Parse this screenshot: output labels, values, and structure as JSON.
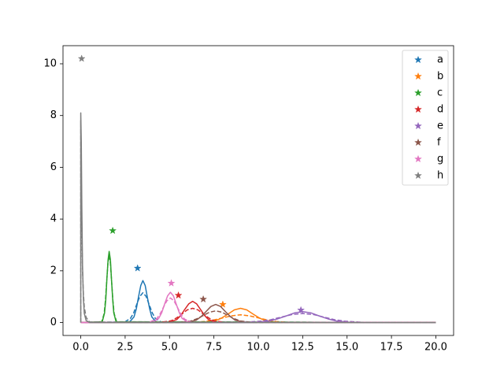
{
  "chart_data": {
    "type": "line",
    "xlim": [
      -1,
      21
    ],
    "ylim": [
      -0.5,
      10.7
    ],
    "xticks": [
      {
        "value": 0,
        "label": "0.0"
      },
      {
        "value": 2.5,
        "label": "2.5"
      },
      {
        "value": 5,
        "label": "5.0"
      },
      {
        "value": 7.5,
        "label": "7.5"
      },
      {
        "value": 10,
        "label": "10.0"
      },
      {
        "value": 12.5,
        "label": "12.5"
      },
      {
        "value": 15,
        "label": "15.0"
      },
      {
        "value": 17.5,
        "label": "17.5"
      },
      {
        "value": 20,
        "label": "20.0"
      }
    ],
    "yticks": [
      0,
      2,
      4,
      6,
      8,
      10
    ],
    "legend": "upper right",
    "series": [
      {
        "name": "a",
        "color": "#1f77b4",
        "marker_x": 3.2,
        "marker_y": 2.1,
        "x": [
          0,
          2.75,
          3,
          3.13,
          3.25,
          3.38,
          3.5,
          3.63,
          3.75,
          3.88,
          4,
          4.25,
          20
        ],
        "values": [
          0,
          0.02,
          0.22,
          0.53,
          0.98,
          1.43,
          1.62,
          1.43,
          0.98,
          0.53,
          0.22,
          0.02,
          0
        ],
        "dashed_x": [
          0,
          2.45,
          2.8,
          2.98,
          3.15,
          3.33,
          3.5,
          3.68,
          3.85,
          4.03,
          4.2,
          4.55,
          20
        ],
        "dashed_values": [
          0,
          0.01,
          0.16,
          0.37,
          0.7,
          1.01,
          1.15,
          1.01,
          0.7,
          0.37,
          0.16,
          0.01,
          0
        ]
      },
      {
        "name": "b",
        "color": "#ff7f0e",
        "marker_x": 8.0,
        "marker_y": 0.7,
        "x": [
          0,
          6.9,
          7.6,
          7.95,
          8.3,
          8.65,
          9,
          9.35,
          9.7,
          10.05,
          10.4,
          11.1,
          20
        ],
        "values": [
          0,
          0.01,
          0.07,
          0.18,
          0.33,
          0.49,
          0.55,
          0.49,
          0.33,
          0.18,
          0.07,
          0.01,
          0
        ],
        "dashed_x": [
          0,
          6,
          7,
          7.5,
          8,
          8.5,
          9,
          9.5,
          10,
          10.5,
          11,
          12,
          20
        ],
        "dashed_values": [
          0,
          0,
          0.04,
          0.1,
          0.18,
          0.26,
          0.3,
          0.26,
          0.18,
          0.1,
          0.04,
          0,
          0
        ]
      },
      {
        "name": "c",
        "color": "#2ca02c",
        "marker_x": 1.8,
        "marker_y": 3.55,
        "x": [
          0,
          1.21,
          1.34,
          1.41,
          1.47,
          1.54,
          1.6,
          1.67,
          1.73,
          1.8,
          1.86,
          1.99,
          20
        ],
        "values": [
          0,
          0.03,
          0.37,
          0.89,
          1.67,
          2.43,
          2.75,
          2.43,
          1.67,
          0.89,
          0.37,
          0.03,
          0
        ],
        "dashed_x": [
          0,
          1.18,
          1.32,
          1.39,
          1.46,
          1.53,
          1.6,
          1.67,
          1.74,
          1.81,
          1.88,
          2.02,
          20
        ],
        "dashed_values": [
          0,
          0.03,
          0.35,
          0.85,
          1.58,
          2.29,
          2.6,
          2.29,
          1.58,
          0.85,
          0.35,
          0.03,
          0
        ]
      },
      {
        "name": "d",
        "color": "#d62728",
        "marker_x": 5.5,
        "marker_y": 1.05,
        "x": [
          0,
          4.95,
          5.4,
          5.63,
          5.85,
          6.08,
          6.3,
          6.53,
          6.75,
          6.98,
          7.2,
          7.65,
          20
        ],
        "values": [
          0,
          0.01,
          0.11,
          0.27,
          0.5,
          0.72,
          0.82,
          0.72,
          0.5,
          0.27,
          0.11,
          0.01,
          0
        ],
        "dashed_x": [
          0,
          4.5,
          5.1,
          5.4,
          5.7,
          6,
          6.3,
          6.6,
          6.9,
          7.2,
          7.5,
          8.1,
          20
        ],
        "dashed_values": [
          0,
          0.01,
          0.07,
          0.18,
          0.33,
          0.49,
          0.55,
          0.49,
          0.33,
          0.18,
          0.07,
          0.01,
          0
        ]
      },
      {
        "name": "e",
        "color": "#9467bd",
        "marker_x": 12.4,
        "marker_y": 0.48,
        "x": [
          0,
          9.65,
          10.6,
          11.08,
          11.55,
          12.03,
          12.5,
          12.98,
          13.45,
          13.93,
          14.4,
          15.35,
          20
        ],
        "values": [
          0,
          0,
          0.06,
          0.14,
          0.25,
          0.37,
          0.42,
          0.37,
          0.25,
          0.14,
          0.06,
          0,
          0
        ],
        "dashed_x": [
          0,
          8.9,
          10.1,
          10.7,
          11.3,
          11.9,
          12.5,
          13.1,
          13.7,
          14.3,
          14.9,
          16.1,
          20
        ],
        "dashed_values": [
          0,
          0,
          0.05,
          0.11,
          0.21,
          0.31,
          0.35,
          0.31,
          0.21,
          0.11,
          0.05,
          0,
          0
        ]
      },
      {
        "name": "f",
        "color": "#8c564b",
        "marker_x": 6.9,
        "marker_y": 0.9,
        "x": [
          0,
          5.95,
          6.5,
          6.78,
          7.05,
          7.33,
          7.6,
          7.88,
          8.15,
          8.43,
          8.7,
          9.25,
          20
        ],
        "values": [
          0,
          0.01,
          0.09,
          0.23,
          0.42,
          0.62,
          0.7,
          0.62,
          0.42,
          0.23,
          0.09,
          0.01,
          0
        ],
        "dashed_x": [
          0,
          5.5,
          6.2,
          6.55,
          6.9,
          7.25,
          7.6,
          7.95,
          8.3,
          8.65,
          9,
          9.7,
          20
        ],
        "dashed_values": [
          0,
          0,
          0.06,
          0.15,
          0.27,
          0.4,
          0.45,
          0.4,
          0.27,
          0.15,
          0.06,
          0,
          0
        ]
      },
      {
        "name": "g",
        "color": "#e377c2",
        "marker_x": 5.1,
        "marker_y": 1.52,
        "x": [
          0,
          4.06,
          4.39,
          4.56,
          4.72,
          4.89,
          5.05,
          5.22,
          5.38,
          5.55,
          5.71,
          6.04,
          20
        ],
        "values": [
          0,
          0.01,
          0.16,
          0.38,
          0.71,
          1.03,
          1.17,
          1.03,
          0.71,
          0.38,
          0.16,
          0.01,
          0
        ],
        "dashed_x": [
          0,
          3.85,
          4.25,
          4.45,
          4.65,
          4.85,
          5.05,
          5.25,
          5.45,
          5.65,
          5.85,
          6.25,
          20
        ],
        "dashed_values": [
          0,
          0.01,
          0.13,
          0.31,
          0.58,
          0.84,
          0.95,
          0.84,
          0.58,
          0.31,
          0.13,
          0.01,
          0
        ]
      },
      {
        "name": "h",
        "color": "#7f7f7f",
        "marker_x": 0.05,
        "marker_y": 10.2,
        "x": [
          0,
          0,
          0.03,
          0.06,
          0.1,
          0.15,
          0.2,
          0.3,
          0.5,
          20
        ],
        "values": [
          0,
          8.1,
          7.0,
          4.5,
          2.2,
          0.9,
          0.35,
          0.08,
          0,
          0
        ],
        "dashed_x": [
          0,
          0,
          0.03,
          0.06,
          0.1,
          0.15,
          0.2,
          0.3,
          0.5,
          20
        ],
        "dashed_values": [
          0,
          7.8,
          5.5,
          3.5,
          2.0,
          1.1,
          0.6,
          0.2,
          0.02,
          0
        ]
      }
    ]
  }
}
